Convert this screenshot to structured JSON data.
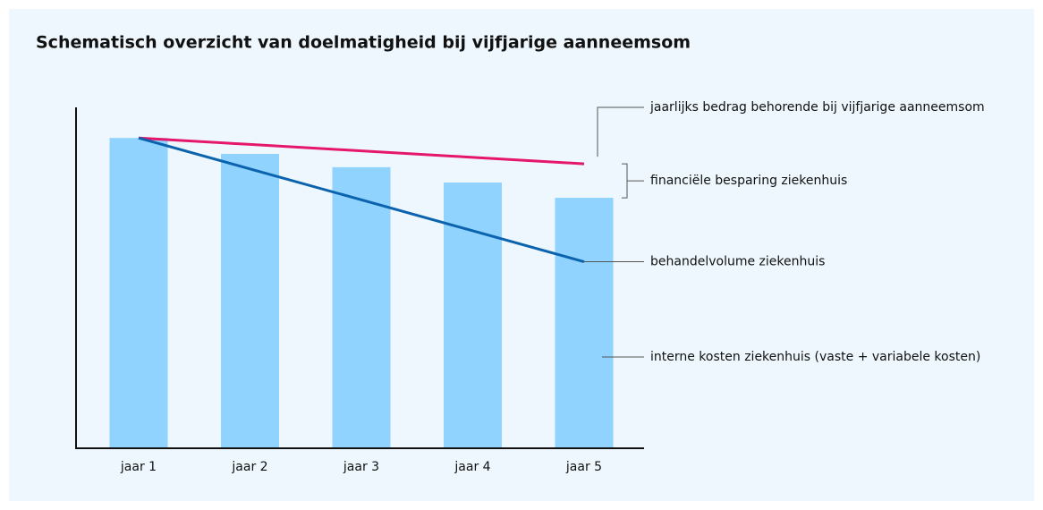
{
  "chart_data": {
    "type": "bar",
    "title": "Schematisch overzicht van doelmatigheid bij vijfjarige aanneemsom",
    "categories": [
      "jaar 1",
      "jaar 2",
      "jaar 3",
      "jaar 4",
      "jaar 5"
    ],
    "ylim": [
      0,
      100
    ],
    "series": [
      {
        "name": "interne kosten ziekenhuis (vaste + variabele kosten)",
        "type": "bar",
        "color": "#8fd3fe",
        "values": [
          91,
          86.3,
          82.4,
          77.9,
          73.4
        ]
      },
      {
        "name": "jaarlijks bedrag behorende bij vijfjarige aanneemsom",
        "type": "line",
        "color": "#e5166c",
        "values": [
          91,
          89.1,
          87.2,
          85.3,
          83.4
        ]
      },
      {
        "name": "behandelvolume ziekenhuis",
        "type": "line",
        "color": "#0b63ae",
        "values": [
          91,
          81.9,
          72.8,
          63.7,
          54.6
        ]
      }
    ],
    "annotations": [
      "financiële besparing ziekenhuis"
    ]
  }
}
